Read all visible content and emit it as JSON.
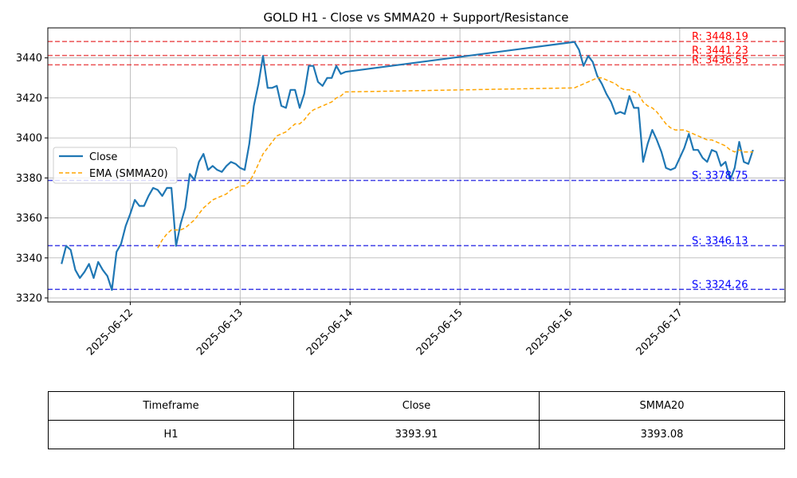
{
  "chart_data": {
    "type": "line",
    "title": "GOLD H1 - Close vs SMMA20 + Support/Resistance",
    "xlabel": "",
    "ylabel": "",
    "ylim": [
      3318,
      3455
    ],
    "xlim": [
      "2025-06-11 06:00",
      "2025-06-17 23:00"
    ],
    "yticks": [
      3320,
      3340,
      3360,
      3380,
      3400,
      3420,
      3440
    ],
    "xticks": [
      "2025-06-12",
      "2025-06-13",
      "2025-06-14",
      "2025-06-15",
      "2025-06-16",
      "2025-06-17"
    ],
    "grid": true,
    "legend_position": "center-left",
    "series": [
      {
        "name": "Close",
        "color": "#1f77b4",
        "style": "solid",
        "points": [
          [
            "2025-06-11 09:00",
            3337
          ],
          [
            "2025-06-11 10:00",
            3346
          ],
          [
            "2025-06-11 11:00",
            3344
          ],
          [
            "2025-06-11 12:00",
            3334
          ],
          [
            "2025-06-11 13:00",
            3330
          ],
          [
            "2025-06-11 14:00",
            3333
          ],
          [
            "2025-06-11 15:00",
            3337
          ],
          [
            "2025-06-11 16:00",
            3330
          ],
          [
            "2025-06-11 17:00",
            3338
          ],
          [
            "2025-06-11 18:00",
            3334
          ],
          [
            "2025-06-11 19:00",
            3331
          ],
          [
            "2025-06-11 20:00",
            3324
          ],
          [
            "2025-06-11 21:00",
            3343
          ],
          [
            "2025-06-11 22:00",
            3347
          ],
          [
            "2025-06-11 23:00",
            3356
          ],
          [
            "2025-06-12 00:00",
            3362
          ],
          [
            "2025-06-12 01:00",
            3369
          ],
          [
            "2025-06-12 02:00",
            3366
          ],
          [
            "2025-06-12 03:00",
            3366
          ],
          [
            "2025-06-12 04:00",
            3371
          ],
          [
            "2025-06-12 05:00",
            3375
          ],
          [
            "2025-06-12 06:00",
            3374
          ],
          [
            "2025-06-12 07:00",
            3371
          ],
          [
            "2025-06-12 08:00",
            3375
          ],
          [
            "2025-06-12 09:00",
            3375
          ],
          [
            "2025-06-12 10:00",
            3346
          ],
          [
            "2025-06-12 11:00",
            3357
          ],
          [
            "2025-06-12 12:00",
            3365
          ],
          [
            "2025-06-12 13:00",
            3382
          ],
          [
            "2025-06-12 14:00",
            3379
          ],
          [
            "2025-06-12 15:00",
            3388
          ],
          [
            "2025-06-12 16:00",
            3392
          ],
          [
            "2025-06-12 17:00",
            3384
          ],
          [
            "2025-06-12 18:00",
            3386
          ],
          [
            "2025-06-12 19:00",
            3384
          ],
          [
            "2025-06-12 20:00",
            3383
          ],
          [
            "2025-06-12 21:00",
            3386
          ],
          [
            "2025-06-12 22:00",
            3388
          ],
          [
            "2025-06-12 23:00",
            3387
          ],
          [
            "2025-06-13 00:00",
            3385
          ],
          [
            "2025-06-13 01:00",
            3384
          ],
          [
            "2025-06-13 02:00",
            3397
          ],
          [
            "2025-06-13 03:00",
            3416
          ],
          [
            "2025-06-13 04:00",
            3427
          ],
          [
            "2025-06-13 05:00",
            3441
          ],
          [
            "2025-06-13 06:00",
            3425
          ],
          [
            "2025-06-13 07:00",
            3425
          ],
          [
            "2025-06-13 08:00",
            3426
          ],
          [
            "2025-06-13 09:00",
            3416
          ],
          [
            "2025-06-13 10:00",
            3415
          ],
          [
            "2025-06-13 11:00",
            3424
          ],
          [
            "2025-06-13 12:00",
            3424
          ],
          [
            "2025-06-13 13:00",
            3415
          ],
          [
            "2025-06-13 14:00",
            3422
          ],
          [
            "2025-06-13 15:00",
            3436
          ],
          [
            "2025-06-13 16:00",
            3436
          ],
          [
            "2025-06-13 17:00",
            3428
          ],
          [
            "2025-06-13 18:00",
            3426
          ],
          [
            "2025-06-13 19:00",
            3430
          ],
          [
            "2025-06-13 20:00",
            3430
          ],
          [
            "2025-06-13 21:00",
            3436
          ],
          [
            "2025-06-13 22:00",
            3432
          ],
          [
            "2025-06-13 23:00",
            3433
          ],
          [
            "2025-06-16 01:00",
            3448
          ],
          [
            "2025-06-16 02:00",
            3444
          ],
          [
            "2025-06-16 03:00",
            3436
          ],
          [
            "2025-06-16 04:00",
            3441
          ],
          [
            "2025-06-16 05:00",
            3438
          ],
          [
            "2025-06-16 06:00",
            3431
          ],
          [
            "2025-06-16 07:00",
            3427
          ],
          [
            "2025-06-16 08:00",
            3422
          ],
          [
            "2025-06-16 09:00",
            3418
          ],
          [
            "2025-06-16 10:00",
            3412
          ],
          [
            "2025-06-16 11:00",
            3413
          ],
          [
            "2025-06-16 12:00",
            3412
          ],
          [
            "2025-06-16 13:00",
            3421
          ],
          [
            "2025-06-16 14:00",
            3415
          ],
          [
            "2025-06-16 15:00",
            3415
          ],
          [
            "2025-06-16 16:00",
            3388
          ],
          [
            "2025-06-16 17:00",
            3397
          ],
          [
            "2025-06-16 18:00",
            3404
          ],
          [
            "2025-06-16 19:00",
            3399
          ],
          [
            "2025-06-16 20:00",
            3393
          ],
          [
            "2025-06-16 21:00",
            3385
          ],
          [
            "2025-06-16 22:00",
            3384
          ],
          [
            "2025-06-16 23:00",
            3385
          ],
          [
            "2025-06-17 00:00",
            3390
          ],
          [
            "2025-06-17 01:00",
            3395
          ],
          [
            "2025-06-17 02:00",
            3402
          ],
          [
            "2025-06-17 03:00",
            3394
          ],
          [
            "2025-06-17 04:00",
            3394
          ],
          [
            "2025-06-17 05:00",
            3390
          ],
          [
            "2025-06-17 06:00",
            3388
          ],
          [
            "2025-06-17 07:00",
            3394
          ],
          [
            "2025-06-17 08:00",
            3393
          ],
          [
            "2025-06-17 09:00",
            3386
          ],
          [
            "2025-06-17 10:00",
            3388
          ],
          [
            "2025-06-17 11:00",
            3379
          ],
          [
            "2025-06-17 12:00",
            3385
          ],
          [
            "2025-06-17 13:00",
            3398
          ],
          [
            "2025-06-17 14:00",
            3388
          ],
          [
            "2025-06-17 15:00",
            3387
          ],
          [
            "2025-06-17 16:00",
            3394
          ]
        ]
      },
      {
        "name": "EMA (SMMA20)",
        "color": "#ffa500",
        "style": "dashed",
        "points": [
          [
            "2025-06-12 06:00",
            3345
          ],
          [
            "2025-06-12 07:00",
            3349
          ],
          [
            "2025-06-12 08:00",
            3352
          ],
          [
            "2025-06-12 09:00",
            3354
          ],
          [
            "2025-06-12 10:00",
            3354
          ],
          [
            "2025-06-12 11:00",
            3354
          ],
          [
            "2025-06-12 12:00",
            3355
          ],
          [
            "2025-06-12 13:00",
            3357
          ],
          [
            "2025-06-12 14:00",
            3359
          ],
          [
            "2025-06-12 15:00",
            3362
          ],
          [
            "2025-06-12 16:00",
            3365
          ],
          [
            "2025-06-12 17:00",
            3367
          ],
          [
            "2025-06-12 18:00",
            3369
          ],
          [
            "2025-06-12 19:00",
            3370
          ],
          [
            "2025-06-12 20:00",
            3371
          ],
          [
            "2025-06-12 21:00",
            3372
          ],
          [
            "2025-06-12 22:00",
            3374
          ],
          [
            "2025-06-12 23:00",
            3375
          ],
          [
            "2025-06-13 00:00",
            3376
          ],
          [
            "2025-06-13 01:00",
            3376
          ],
          [
            "2025-06-13 02:00",
            3378
          ],
          [
            "2025-06-13 03:00",
            3382
          ],
          [
            "2025-06-13 04:00",
            3387
          ],
          [
            "2025-06-13 05:00",
            3392
          ],
          [
            "2025-06-13 06:00",
            3395
          ],
          [
            "2025-06-13 07:00",
            3398
          ],
          [
            "2025-06-13 08:00",
            3401
          ],
          [
            "2025-06-13 09:00",
            3402
          ],
          [
            "2025-06-13 10:00",
            3403
          ],
          [
            "2025-06-13 11:00",
            3405
          ],
          [
            "2025-06-13 12:00",
            3407
          ],
          [
            "2025-06-13 13:00",
            3407
          ],
          [
            "2025-06-13 14:00",
            3409
          ],
          [
            "2025-06-13 15:00",
            3412
          ],
          [
            "2025-06-13 16:00",
            3414
          ],
          [
            "2025-06-13 17:00",
            3415
          ],
          [
            "2025-06-13 18:00",
            3416
          ],
          [
            "2025-06-13 19:00",
            3417
          ],
          [
            "2025-06-13 20:00",
            3418
          ],
          [
            "2025-06-13 21:00",
            3420
          ],
          [
            "2025-06-13 22:00",
            3421
          ],
          [
            "2025-06-13 23:00",
            3423
          ],
          [
            "2025-06-16 01:00",
            3425
          ],
          [
            "2025-06-16 02:00",
            3426
          ],
          [
            "2025-06-16 03:00",
            3427
          ],
          [
            "2025-06-16 04:00",
            3428
          ],
          [
            "2025-06-16 05:00",
            3429
          ],
          [
            "2025-06-16 06:00",
            3430
          ],
          [
            "2025-06-16 07:00",
            3430
          ],
          [
            "2025-06-16 08:00",
            3429
          ],
          [
            "2025-06-16 09:00",
            3428
          ],
          [
            "2025-06-16 10:00",
            3427
          ],
          [
            "2025-06-16 11:00",
            3425
          ],
          [
            "2025-06-16 12:00",
            3424
          ],
          [
            "2025-06-16 13:00",
            3424
          ],
          [
            "2025-06-16 14:00",
            3423
          ],
          [
            "2025-06-16 15:00",
            3422
          ],
          [
            "2025-06-16 16:00",
            3418
          ],
          [
            "2025-06-16 17:00",
            3416
          ],
          [
            "2025-06-16 18:00",
            3415
          ],
          [
            "2025-06-16 19:00",
            3413
          ],
          [
            "2025-06-16 20:00",
            3410
          ],
          [
            "2025-06-16 21:00",
            3407
          ],
          [
            "2025-06-16 22:00",
            3405
          ],
          [
            "2025-06-16 23:00",
            3404
          ],
          [
            "2025-06-17 00:00",
            3404
          ],
          [
            "2025-06-17 01:00",
            3404
          ],
          [
            "2025-06-17 02:00",
            3403
          ],
          [
            "2025-06-17 03:00",
            3402
          ],
          [
            "2025-06-17 04:00",
            3401
          ],
          [
            "2025-06-17 05:00",
            3400
          ],
          [
            "2025-06-17 06:00",
            3399
          ],
          [
            "2025-06-17 07:00",
            3399
          ],
          [
            "2025-06-17 08:00",
            3398
          ],
          [
            "2025-06-17 09:00",
            3397
          ],
          [
            "2025-06-17 10:00",
            3396
          ],
          [
            "2025-06-17 11:00",
            3394
          ],
          [
            "2025-06-17 12:00",
            3393
          ],
          [
            "2025-06-17 13:00",
            3394
          ],
          [
            "2025-06-17 14:00",
            3393
          ],
          [
            "2025-06-17 15:00",
            3393
          ],
          [
            "2025-06-17 16:00",
            3393
          ]
        ]
      }
    ],
    "resistance": [
      {
        "value": 3448.19,
        "label": "R: 3448.19"
      },
      {
        "value": 3441.23,
        "label": "R: 3441.23"
      },
      {
        "value": 3436.55,
        "label": "R: 3436.55"
      }
    ],
    "support": [
      {
        "value": 3378.75,
        "label": "S: 3378.75"
      },
      {
        "value": 3346.13,
        "label": "S: 3346.13"
      },
      {
        "value": 3324.26,
        "label": "S: 3324.26"
      }
    ],
    "colors": {
      "resistance": "#e41a1c",
      "support": "#0000dd",
      "label_resistance": "#ff0000",
      "label_support": "#0000ff",
      "grid": "#b0b0b0"
    }
  },
  "table": {
    "headers": [
      "Timeframe",
      "Close",
      "SMMA20"
    ],
    "rows": [
      [
        "H1",
        "3393.91",
        "3393.08"
      ]
    ]
  }
}
